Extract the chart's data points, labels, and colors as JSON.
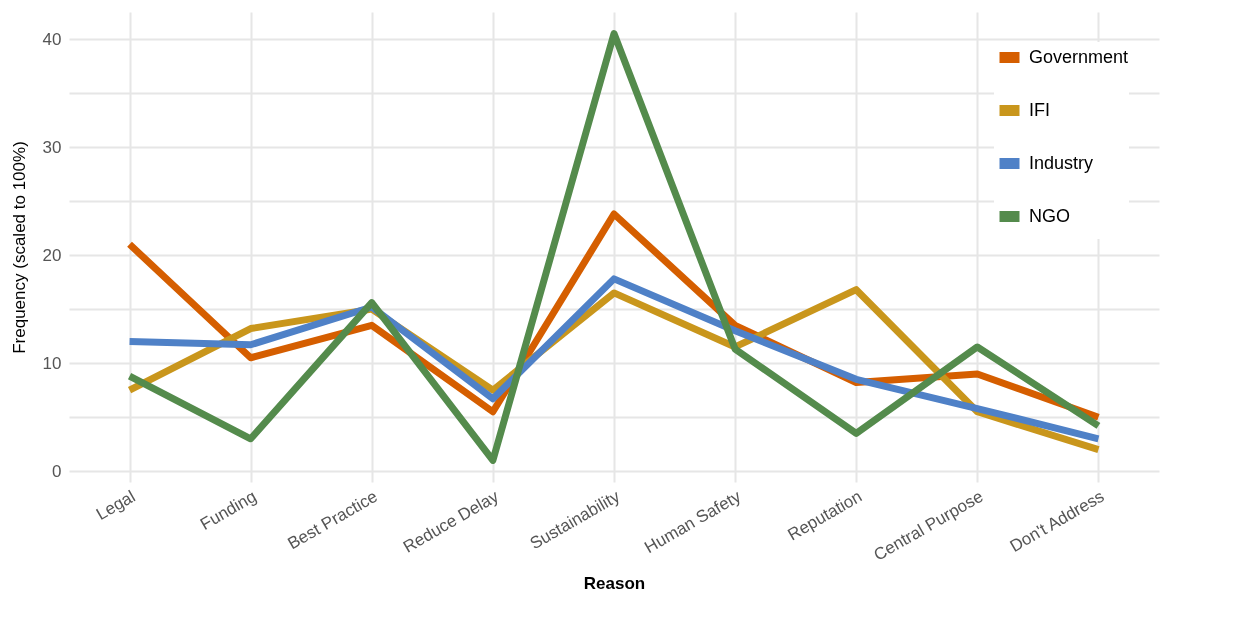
{
  "chart_data": {
    "type": "line",
    "xlabel": "Reason",
    "ylabel": "Frequency (scaled to 100%)",
    "categories": [
      "Legal",
      "Funding",
      "Best Practice",
      "Reduce Delay",
      "Sustainability",
      "Human Safety",
      "Reputation",
      "Central Purpose",
      "Don't Address"
    ],
    "series": [
      {
        "name": "Government",
        "color": "#d55e00",
        "values": [
          21,
          10.5,
          13.5,
          5.5,
          23.8,
          13.5,
          8.2,
          9,
          5
        ]
      },
      {
        "name": "IFI",
        "color": "#c9961c",
        "values": [
          7.5,
          13.2,
          15,
          7.5,
          16.5,
          11.5,
          16.8,
          5.5,
          2
        ]
      },
      {
        "name": "Industry",
        "color": "#4f81c7",
        "values": [
          12,
          11.7,
          15.2,
          6.7,
          17.8,
          13,
          8.5,
          5.8,
          3
        ]
      },
      {
        "name": "NGO",
        "color": "#548b4c",
        "values": [
          8.8,
          3,
          15.6,
          1,
          40.5,
          11.3,
          3.5,
          11.5,
          4.2
        ]
      }
    ],
    "ylim": [
      -1,
      42.5
    ],
    "yticks": [
      0,
      {
        "value": 5,
        "label": null
      },
      10,
      {
        "value": 15,
        "label": null
      },
      20,
      {
        "value": 25,
        "label": null
      },
      30,
      {
        "value": 35,
        "label": null
      },
      40
    ],
    "grid": true,
    "legend": "top right",
    "line_style": "solid"
  }
}
